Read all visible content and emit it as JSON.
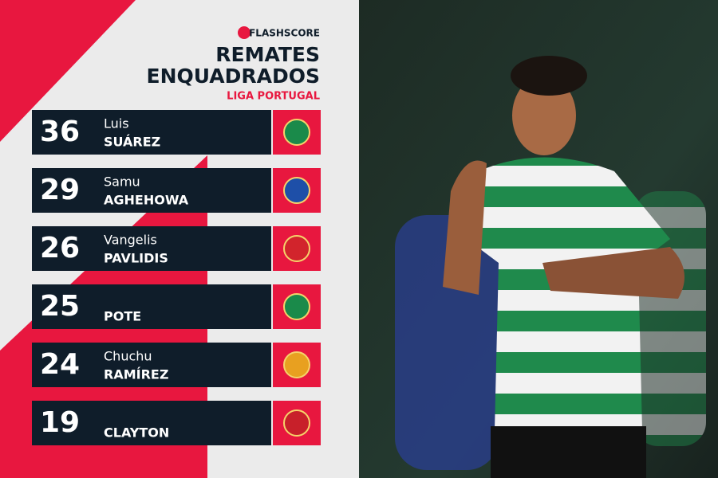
{
  "brand": "FLASHSCORE",
  "title": [
    "REMATES",
    "ENQUADRADOS"
  ],
  "subtitle": "LIGA PORTUGAL",
  "rows": [
    {
      "value": "36",
      "first_name": "Luis",
      "last_name": "SUÁREZ",
      "club_color": "#1a8a4a"
    },
    {
      "value": "29",
      "first_name": "Samu",
      "last_name": "AGHEHOWA",
      "club_color": "#1e4fa8"
    },
    {
      "value": "26",
      "first_name": "Vangelis",
      "last_name": "PAVLIDIS",
      "club_color": "#d2242c"
    },
    {
      "value": "25",
      "last_name": "POTE",
      "club_color": "#1a8a4a"
    },
    {
      "value": "24",
      "first_name": "Chuchu",
      "last_name": "RAMÍREZ",
      "club_color": "#e8a020"
    },
    {
      "value": "19",
      "last_name": "CLAYTON",
      "club_color": "#c8202a"
    }
  ]
}
